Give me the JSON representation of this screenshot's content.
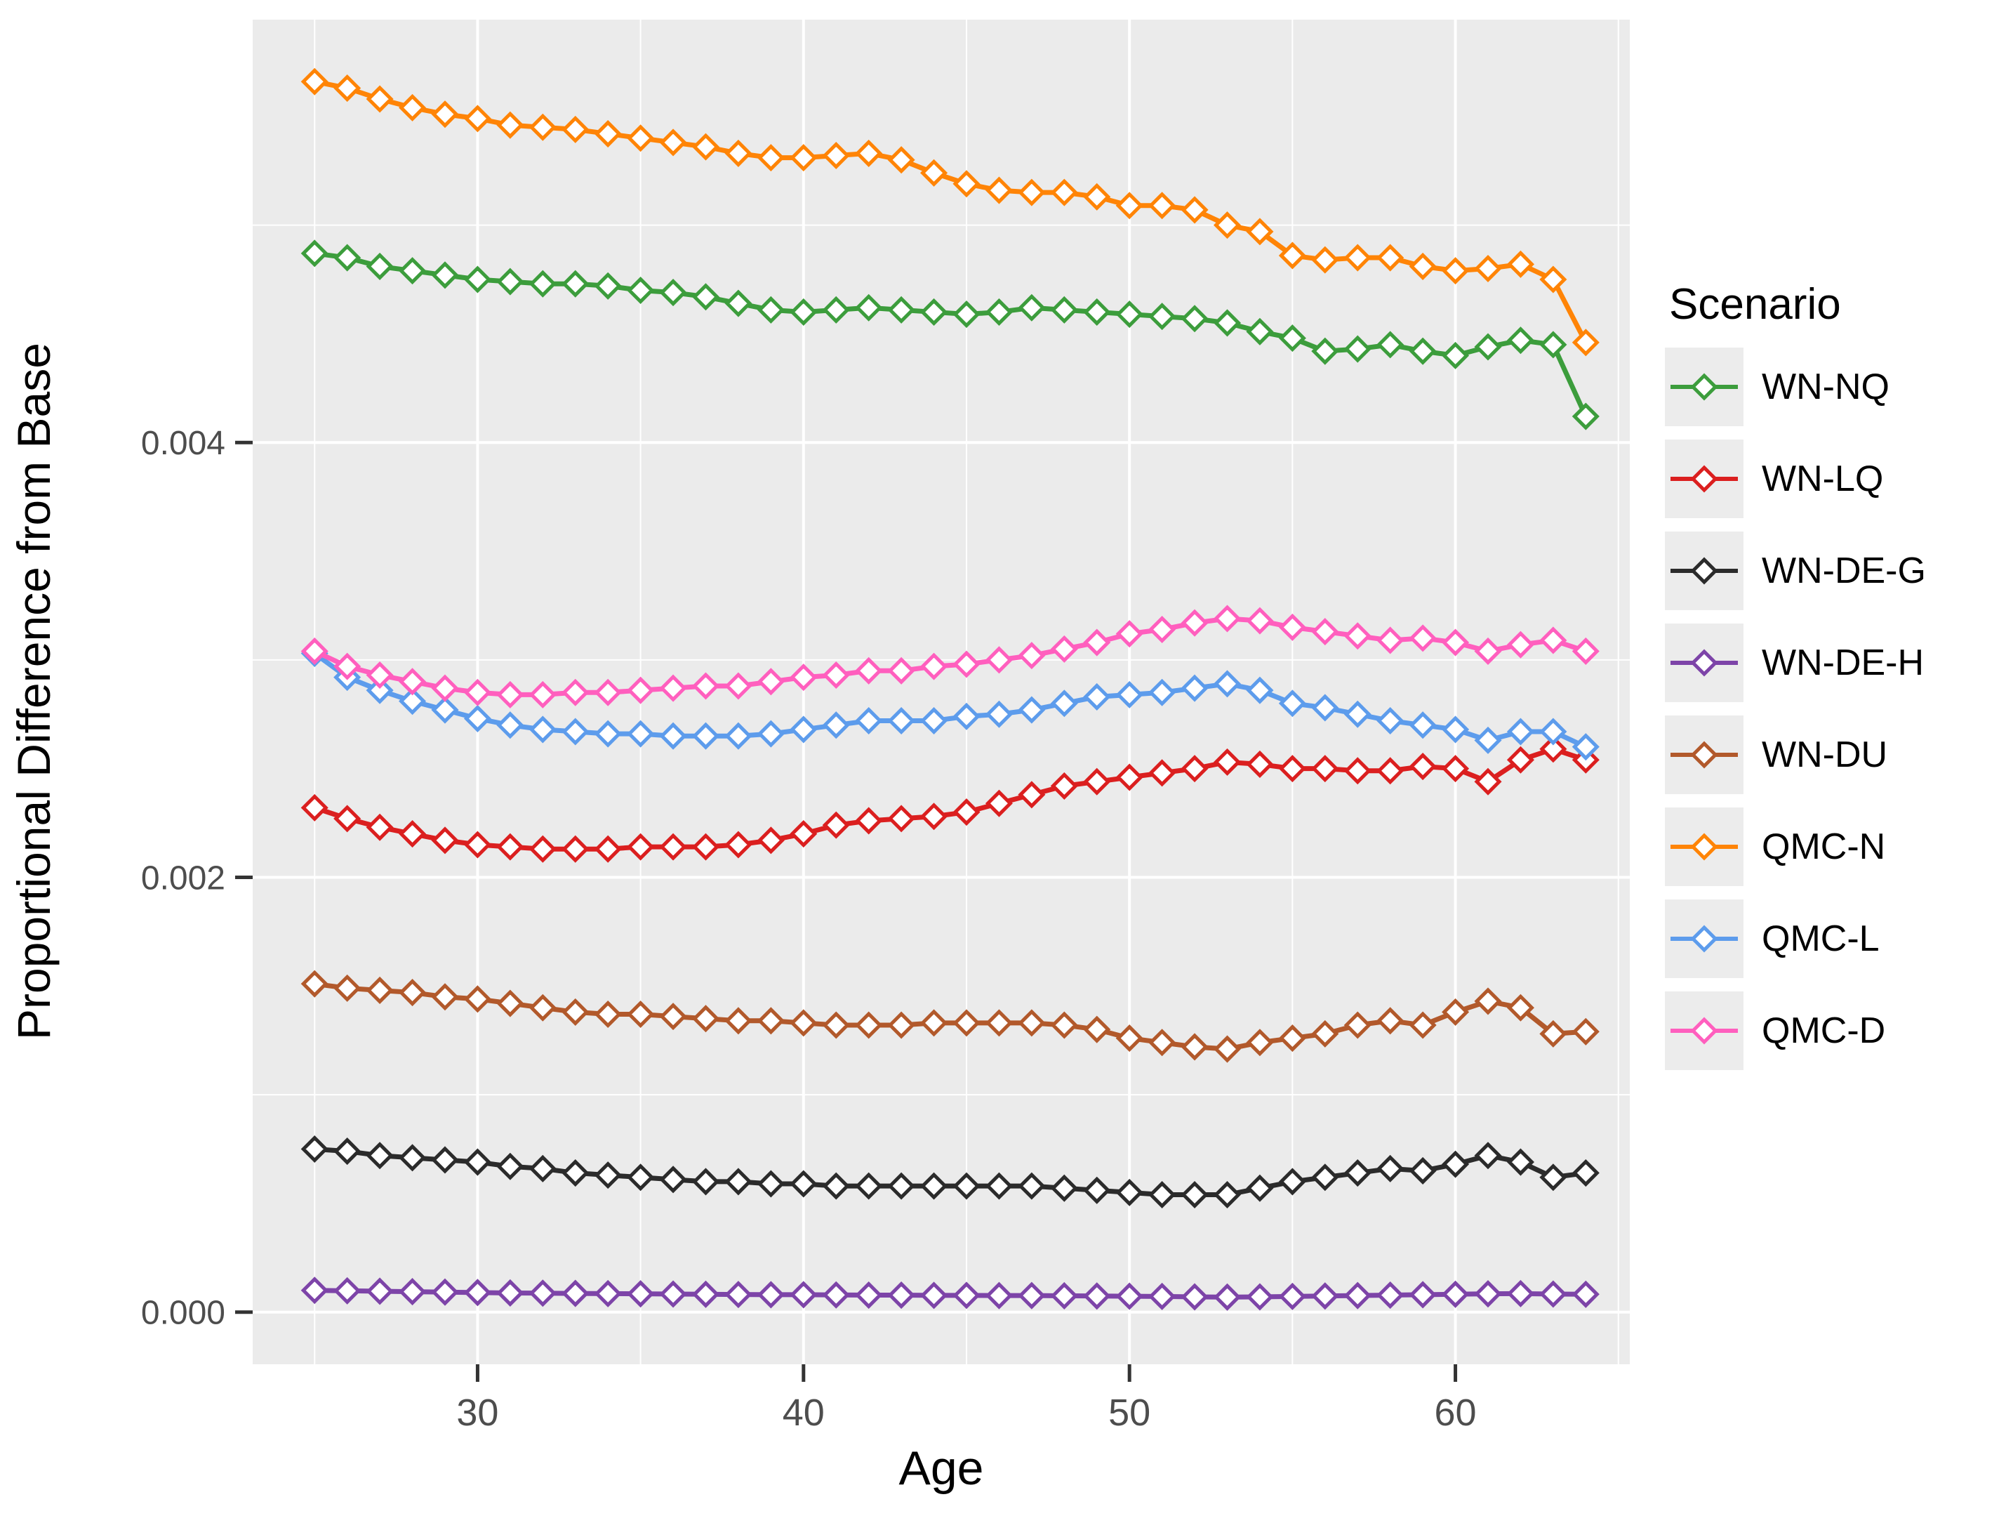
{
  "figure": {
    "xlabel": "Age",
    "ylabel": "Proportional Difference from Base",
    "legend_title": "Scenario"
  },
  "chart_data": {
    "type": "line",
    "title": "",
    "xlabel": "Age",
    "ylabel": "Proportional Difference from Base",
    "legend_title": "Scenario",
    "legend_position": "right",
    "marker": "open-diamond",
    "grid": "white-major-minor-on-gray",
    "panel_bg": "#EBEBEB",
    "gridline_color": "#FFFFFF",
    "tick_color": "#333333",
    "tick_label_color": "#4D4D4D",
    "xlim": [
      23.1,
      65.35
    ],
    "ylim": [
      -0.00024,
      0.005945
    ],
    "x_ticks": [
      30,
      40,
      50,
      60
    ],
    "x_minor_ticks": [
      25,
      35,
      45,
      55,
      65
    ],
    "y_ticks": [
      0.0,
      0.002,
      0.004
    ],
    "y_tick_labels": [
      "0.000",
      "0.002",
      "0.004"
    ],
    "y_minor_ticks": [
      0.001,
      0.003,
      0.005
    ],
    "x": [
      25,
      26,
      27,
      28,
      29,
      30,
      31,
      32,
      33,
      34,
      35,
      36,
      37,
      38,
      39,
      40,
      41,
      42,
      43,
      44,
      45,
      46,
      47,
      48,
      49,
      50,
      51,
      52,
      53,
      54,
      55,
      56,
      57,
      58,
      59,
      60,
      61,
      62,
      63,
      64
    ],
    "draw_order": [
      3,
      2,
      4,
      1,
      6,
      7,
      0,
      5
    ],
    "series": [
      {
        "name": "WN-NQ",
        "color": "#3C9D3C",
        "values": [
          0.00487,
          0.00485,
          0.00481,
          0.00479,
          0.00477,
          0.00475,
          0.00474,
          0.00473,
          0.00473,
          0.00472,
          0.0047,
          0.00469,
          0.00467,
          0.00464,
          0.00461,
          0.0046,
          0.00461,
          0.00462,
          0.00461,
          0.0046,
          0.00459,
          0.0046,
          0.00462,
          0.00461,
          0.0046,
          0.00459,
          0.00458,
          0.00457,
          0.00455,
          0.00451,
          0.00448,
          0.00442,
          0.00443,
          0.00445,
          0.00442,
          0.0044,
          0.00444,
          0.00447,
          0.00445,
          0.00412
        ]
      },
      {
        "name": "WN-LQ",
        "color": "#DB1F1F",
        "values": [
          0.00232,
          0.00227,
          0.00223,
          0.0022,
          0.00217,
          0.00215,
          0.00214,
          0.00213,
          0.00213,
          0.00213,
          0.00214,
          0.00214,
          0.00214,
          0.00215,
          0.00217,
          0.0022,
          0.00224,
          0.00226,
          0.00227,
          0.00228,
          0.0023,
          0.00234,
          0.00238,
          0.00242,
          0.00244,
          0.00246,
          0.00248,
          0.0025,
          0.00253,
          0.00252,
          0.0025,
          0.0025,
          0.00249,
          0.00249,
          0.00251,
          0.0025,
          0.00244,
          0.00254,
          0.00259,
          0.00254
        ]
      },
      {
        "name": "WN-DE-G",
        "color": "#2B2B2B",
        "values": [
          0.00075,
          0.00074,
          0.00072,
          0.00071,
          0.0007,
          0.00069,
          0.00067,
          0.00066,
          0.00064,
          0.00063,
          0.00062,
          0.00061,
          0.0006,
          0.0006,
          0.00059,
          0.00059,
          0.00058,
          0.00058,
          0.00058,
          0.00058,
          0.00058,
          0.00058,
          0.00058,
          0.00057,
          0.00056,
          0.00055,
          0.00054,
          0.00054,
          0.00054,
          0.00057,
          0.0006,
          0.00062,
          0.00064,
          0.00066,
          0.00065,
          0.00068,
          0.00072,
          0.00069,
          0.00062,
          0.00064
        ]
      },
      {
        "name": "WN-DE-H",
        "color": "#7D44A8",
        "values": [
          0.0001,
          9.8e-05,
          9.6e-05,
          9.4e-05,
          9.2e-05,
          9e-05,
          8.8e-05,
          8.7e-05,
          8.6e-05,
          8.5e-05,
          8.4e-05,
          8.3e-05,
          8.2e-05,
          8.1e-05,
          8e-05,
          8e-05,
          7.9e-05,
          7.8e-05,
          7.8e-05,
          7.7e-05,
          7.7e-05,
          7.6e-05,
          7.6e-05,
          7.5e-05,
          7.4e-05,
          7.3e-05,
          7.2e-05,
          7e-05,
          6.9e-05,
          7e-05,
          7.2e-05,
          7.4e-05,
          7.6e-05,
          7.8e-05,
          8e-05,
          8.2e-05,
          8.4e-05,
          8.5e-05,
          8.3e-05,
          8.2e-05
        ]
      },
      {
        "name": "WN-DU",
        "color": "#B2592B",
        "values": [
          0.00151,
          0.00149,
          0.00148,
          0.00147,
          0.00145,
          0.00144,
          0.00142,
          0.0014,
          0.00138,
          0.00137,
          0.00137,
          0.00136,
          0.00135,
          0.00134,
          0.00134,
          0.00133,
          0.00132,
          0.00132,
          0.00132,
          0.00133,
          0.00133,
          0.00133,
          0.00133,
          0.00132,
          0.0013,
          0.00126,
          0.00124,
          0.00122,
          0.00121,
          0.00124,
          0.00126,
          0.00128,
          0.00132,
          0.00134,
          0.00132,
          0.00138,
          0.00143,
          0.0014,
          0.00128,
          0.00129
        ]
      },
      {
        "name": "QMC-N",
        "color": "#FF8406",
        "values": [
          0.00566,
          0.00563,
          0.00558,
          0.00554,
          0.00551,
          0.00549,
          0.00546,
          0.00545,
          0.00544,
          0.00542,
          0.0054,
          0.00538,
          0.00536,
          0.00533,
          0.00531,
          0.00531,
          0.00532,
          0.00533,
          0.0053,
          0.00524,
          0.00519,
          0.00516,
          0.00515,
          0.00515,
          0.00513,
          0.00509,
          0.00509,
          0.00507,
          0.005,
          0.00497,
          0.00486,
          0.00484,
          0.00485,
          0.00485,
          0.00481,
          0.00479,
          0.0048,
          0.00482,
          0.00475,
          0.00446
        ]
      },
      {
        "name": "QMC-L",
        "color": "#5D9CEC",
        "values": [
          0.00303,
          0.00292,
          0.00286,
          0.00281,
          0.00277,
          0.00273,
          0.0027,
          0.00268,
          0.00267,
          0.00266,
          0.00266,
          0.00265,
          0.00265,
          0.00265,
          0.00266,
          0.00268,
          0.0027,
          0.00272,
          0.00272,
          0.00272,
          0.00274,
          0.00275,
          0.00277,
          0.0028,
          0.00283,
          0.00284,
          0.00285,
          0.00287,
          0.00289,
          0.00286,
          0.0028,
          0.00278,
          0.00275,
          0.00272,
          0.0027,
          0.00268,
          0.00263,
          0.00267,
          0.00267,
          0.0026
        ]
      },
      {
        "name": "QMC-D",
        "color": "#FF5FBE",
        "values": [
          0.00304,
          0.00297,
          0.00293,
          0.0029,
          0.00287,
          0.00285,
          0.00284,
          0.00284,
          0.00285,
          0.00285,
          0.00286,
          0.00287,
          0.00288,
          0.00288,
          0.0029,
          0.00292,
          0.00293,
          0.00295,
          0.00295,
          0.00297,
          0.00298,
          0.003,
          0.00302,
          0.00305,
          0.00308,
          0.00312,
          0.00314,
          0.00317,
          0.00319,
          0.00318,
          0.00315,
          0.00313,
          0.00311,
          0.00309,
          0.0031,
          0.00308,
          0.00304,
          0.00307,
          0.00309,
          0.00304
        ]
      }
    ]
  }
}
